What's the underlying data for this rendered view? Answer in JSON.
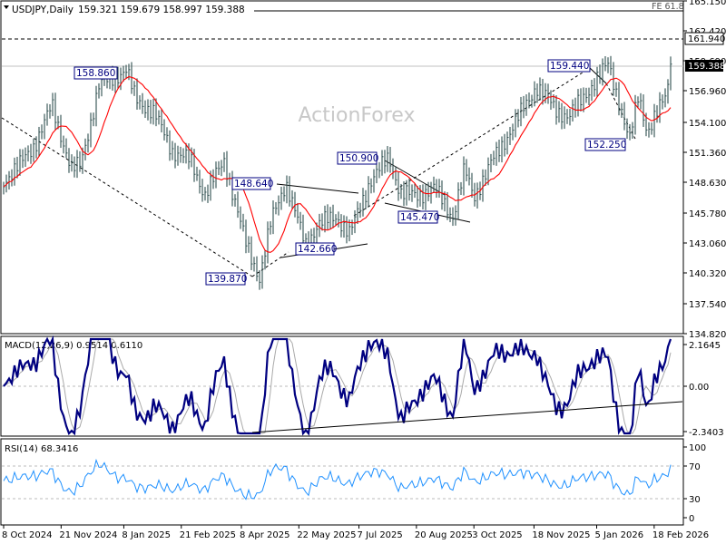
{
  "header": {
    "symbol": "USDJPY,Daily",
    "ohlc": "159.321 159.679 158.997 159.388",
    "fe_label": "FE 61.8",
    "watermark": "ActionForex"
  },
  "price_axis": {
    "ticks": [
      "165.150",
      "162.420",
      "159.690",
      "156.960",
      "154.100",
      "151.360",
      "148.630",
      "145.780",
      "143.060",
      "140.320",
      "137.540",
      "134.820"
    ],
    "level_tags": [
      "161.940",
      "159.388"
    ]
  },
  "x_axis": {
    "labels": [
      "8 Oct 2024",
      "21 Nov 2024",
      "8 Jan 2025",
      "21 Feb 2025",
      "8 Apr 2025",
      "22 May 2025",
      "7 Jul 2025",
      "20 Aug 2025",
      "3 Oct 2025",
      "18 Nov 2025",
      "5 Jan 2026",
      "18 Feb 2026"
    ]
  },
  "annotations": [
    "158.860",
    "148.640",
    "139.870",
    "142.660",
    "150.900",
    "145.470",
    "159.440",
    "152.250"
  ],
  "macd": {
    "title": "MACD(12,26,9) 0.9514 0.6110",
    "ticks": [
      "2.1645",
      "0.00",
      "-2.3403"
    ]
  },
  "rsi": {
    "title": "RSI(14) 68.3416",
    "ticks": [
      "100",
      "70",
      "30",
      "0"
    ]
  },
  "chart_data": {
    "type": "line",
    "close_anchors": [
      [
        "8 Oct 2024",
        148.7
      ],
      [
        "21 Oct 2024",
        150.3
      ],
      [
        "1 Nov 2024",
        152.1
      ],
      [
        "14 Nov 2024",
        155.6
      ],
      [
        "29 Nov 2024",
        149.8
      ],
      [
        "6 Dec 2024",
        150.2
      ],
      [
        "20 Dec 2024",
        157.4
      ],
      [
        "10 Jan 2025",
        158.86
      ],
      [
        "17 Jan 2025",
        156.2
      ],
      [
        "31 Jan 2025",
        155.0
      ],
      [
        "14 Feb 2025",
        151.5
      ],
      [
        "28 Feb 2025",
        150.6
      ],
      [
        "11 Mar 2025",
        147.5
      ],
      [
        "26 Mar 2025",
        150.6
      ],
      [
        "11 Apr 2025",
        143.2
      ],
      [
        "22 Apr 2025",
        139.87
      ],
      [
        "1 May 2025",
        145.2
      ],
      [
        "12 May 2025",
        148.64
      ],
      [
        "27 May 2025",
        142.9
      ],
      [
        "6 Jun 2025",
        144.8
      ],
      [
        "20 Jun 2025",
        145.5
      ],
      [
        "30 Jun 2025",
        143.9
      ],
      [
        "15 Jul 2025",
        148.6
      ],
      [
        "30 Jul 2025",
        150.9
      ],
      [
        "8 Aug 2025",
        147.6
      ],
      [
        "20 Aug 2025",
        147.4
      ],
      [
        "3 Sep 2025",
        148.1
      ],
      [
        "17 Sep 2025",
        145.47
      ],
      [
        "26 Sep 2025",
        149.8
      ],
      [
        "3 Oct 2025",
        147.3
      ],
      [
        "17 Oct 2025",
        150.5
      ],
      [
        "4 Nov 2025",
        154.1
      ],
      [
        "20 Nov 2025",
        157.4
      ],
      [
        "5 Dec 2025",
        155.2
      ],
      [
        "15 Dec 2025",
        154.6
      ],
      [
        "31 Dec 2025",
        157.2
      ],
      [
        "14 Jan 2026",
        159.44
      ],
      [
        "23 Jan 2026",
        155.6
      ],
      [
        "30 Jan 2026",
        152.25
      ],
      [
        "6 Feb 2026",
        156.7
      ],
      [
        "13 Feb 2026",
        153.2
      ],
      [
        "20 Feb 2026",
        154.8
      ],
      [
        "27 Feb 2026",
        156.6
      ],
      [
        "4 Mar 2026",
        159.388
      ]
    ],
    "ylim": [
      134.82,
      165.15
    ],
    "fe_level": 161.94,
    "last_close": 159.388,
    "macd_range": [
      -2.3403,
      2.1645
    ],
    "rsi_levels": [
      70,
      30
    ],
    "colors": {
      "price": "#2f4f4f",
      "ma": "#ff0000",
      "macd": "#000080",
      "signal": "#a9a9a9",
      "rsi": "#1e90ff"
    }
  }
}
